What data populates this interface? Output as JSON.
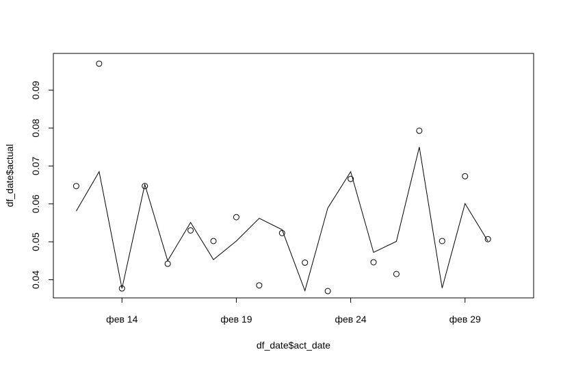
{
  "chart_data": {
    "type": "scatter",
    "title": "",
    "xlabel": "df_date$act_date",
    "ylabel": "df_date$actual",
    "x_ticks": [
      {
        "value": "2016-02-14",
        "label": "фев 14"
      },
      {
        "value": "2016-02-19",
        "label": "фев 19"
      },
      {
        "value": "2016-02-24",
        "label": "фев 24"
      },
      {
        "value": "2016-02-29",
        "label": "фев 29"
      }
    ],
    "y_ticks": [
      {
        "value": 0.04,
        "label": "0.04"
      },
      {
        "value": 0.05,
        "label": "0.05"
      },
      {
        "value": 0.06,
        "label": "0.06"
      },
      {
        "value": 0.07,
        "label": "0.07"
      },
      {
        "value": 0.08,
        "label": "0.08"
      },
      {
        "value": 0.09,
        "label": "0.09"
      }
    ],
    "xlim": [
      "2016-02-11",
      "2016-03-03"
    ],
    "ylim": [
      0.0352,
      0.0997
    ],
    "series": [
      {
        "type": "points",
        "marker": "open-circle",
        "color": "#000000",
        "points": [
          {
            "x": "2016-02-12",
            "y": 0.0647
          },
          {
            "x": "2016-02-13",
            "y": 0.097
          },
          {
            "x": "2016-02-14",
            "y": 0.0377
          },
          {
            "x": "2016-02-15",
            "y": 0.0647
          },
          {
            "x": "2016-02-16",
            "y": 0.0442
          },
          {
            "x": "2016-02-17",
            "y": 0.053
          },
          {
            "x": "2016-02-18",
            "y": 0.0502
          },
          {
            "x": "2016-02-19",
            "y": 0.0565
          },
          {
            "x": "2016-02-20",
            "y": 0.0385
          },
          {
            "x": "2016-02-21",
            "y": 0.0523
          },
          {
            "x": "2016-02-22",
            "y": 0.0445
          },
          {
            "x": "2016-02-23",
            "y": 0.037
          },
          {
            "x": "2016-02-24",
            "y": 0.0666
          },
          {
            "x": "2016-02-25",
            "y": 0.0446
          },
          {
            "x": "2016-02-26",
            "y": 0.0415
          },
          {
            "x": "2016-02-27",
            "y": 0.0793
          },
          {
            "x": "2016-02-28",
            "y": 0.0502
          },
          {
            "x": "2016-02-29",
            "y": 0.0673
          },
          {
            "x": "2016-03-01",
            "y": 0.0507
          }
        ]
      },
      {
        "type": "line",
        "color": "#000000",
        "points": [
          {
            "x": "2016-02-12",
            "y": 0.0581
          },
          {
            "x": "2016-02-13",
            "y": 0.0685
          },
          {
            "x": "2016-02-14",
            "y": 0.0377
          },
          {
            "x": "2016-02-15",
            "y": 0.0651
          },
          {
            "x": "2016-02-16",
            "y": 0.045
          },
          {
            "x": "2016-02-17",
            "y": 0.0551
          },
          {
            "x": "2016-02-18",
            "y": 0.0453
          },
          {
            "x": "2016-02-19",
            "y": 0.0502
          },
          {
            "x": "2016-02-20",
            "y": 0.0562
          },
          {
            "x": "2016-02-21",
            "y": 0.0532
          },
          {
            "x": "2016-02-22",
            "y": 0.0371
          },
          {
            "x": "2016-02-23",
            "y": 0.0589
          },
          {
            "x": "2016-02-24",
            "y": 0.0685
          },
          {
            "x": "2016-02-25",
            "y": 0.0472
          },
          {
            "x": "2016-02-26",
            "y": 0.0501
          },
          {
            "x": "2016-02-27",
            "y": 0.075
          },
          {
            "x": "2016-02-28",
            "y": 0.0378
          },
          {
            "x": "2016-02-29",
            "y": 0.0601
          },
          {
            "x": "2016-03-01",
            "y": 0.0502
          }
        ]
      }
    ],
    "grid": false,
    "legend": "none"
  }
}
